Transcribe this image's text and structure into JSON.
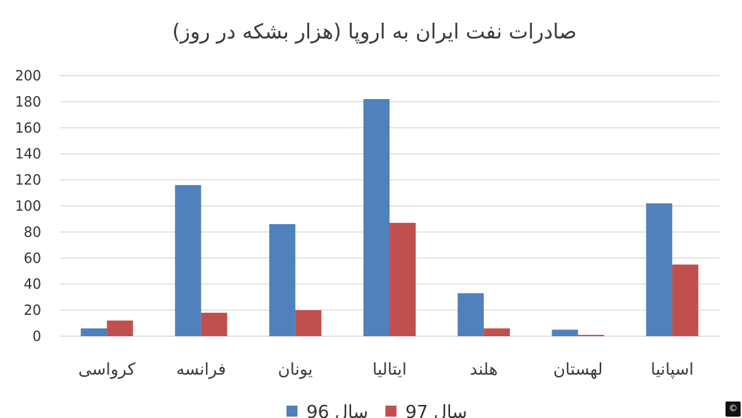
{
  "chart_data": {
    "type": "bar",
    "title": "صادرات نفت ایران به اروپا (هزار بشکه در روز)",
    "categories": [
      "کرواسی",
      "فرانسه",
      "یونان",
      "ایتالیا",
      "هلند",
      "لهستان",
      "اسپانیا"
    ],
    "series": [
      {
        "name": "سال 96",
        "values": [
          6,
          116,
          86,
          182,
          33,
          5,
          102
        ],
        "color": "#4f81bd"
      },
      {
        "name": "سال 97",
        "values": [
          12,
          18,
          20,
          87,
          6,
          1,
          55
        ],
        "color": "#c0504d"
      }
    ],
    "ylim": [
      0,
      200
    ],
    "yticks": [
      0,
      20,
      40,
      60,
      80,
      100,
      120,
      140,
      160,
      180,
      200
    ],
    "xlabel": "",
    "ylabel": "",
    "grid": true,
    "legend_position": "bottom",
    "gridline_color": "#d9d9d9"
  },
  "badge": {
    "symbol": "©"
  }
}
